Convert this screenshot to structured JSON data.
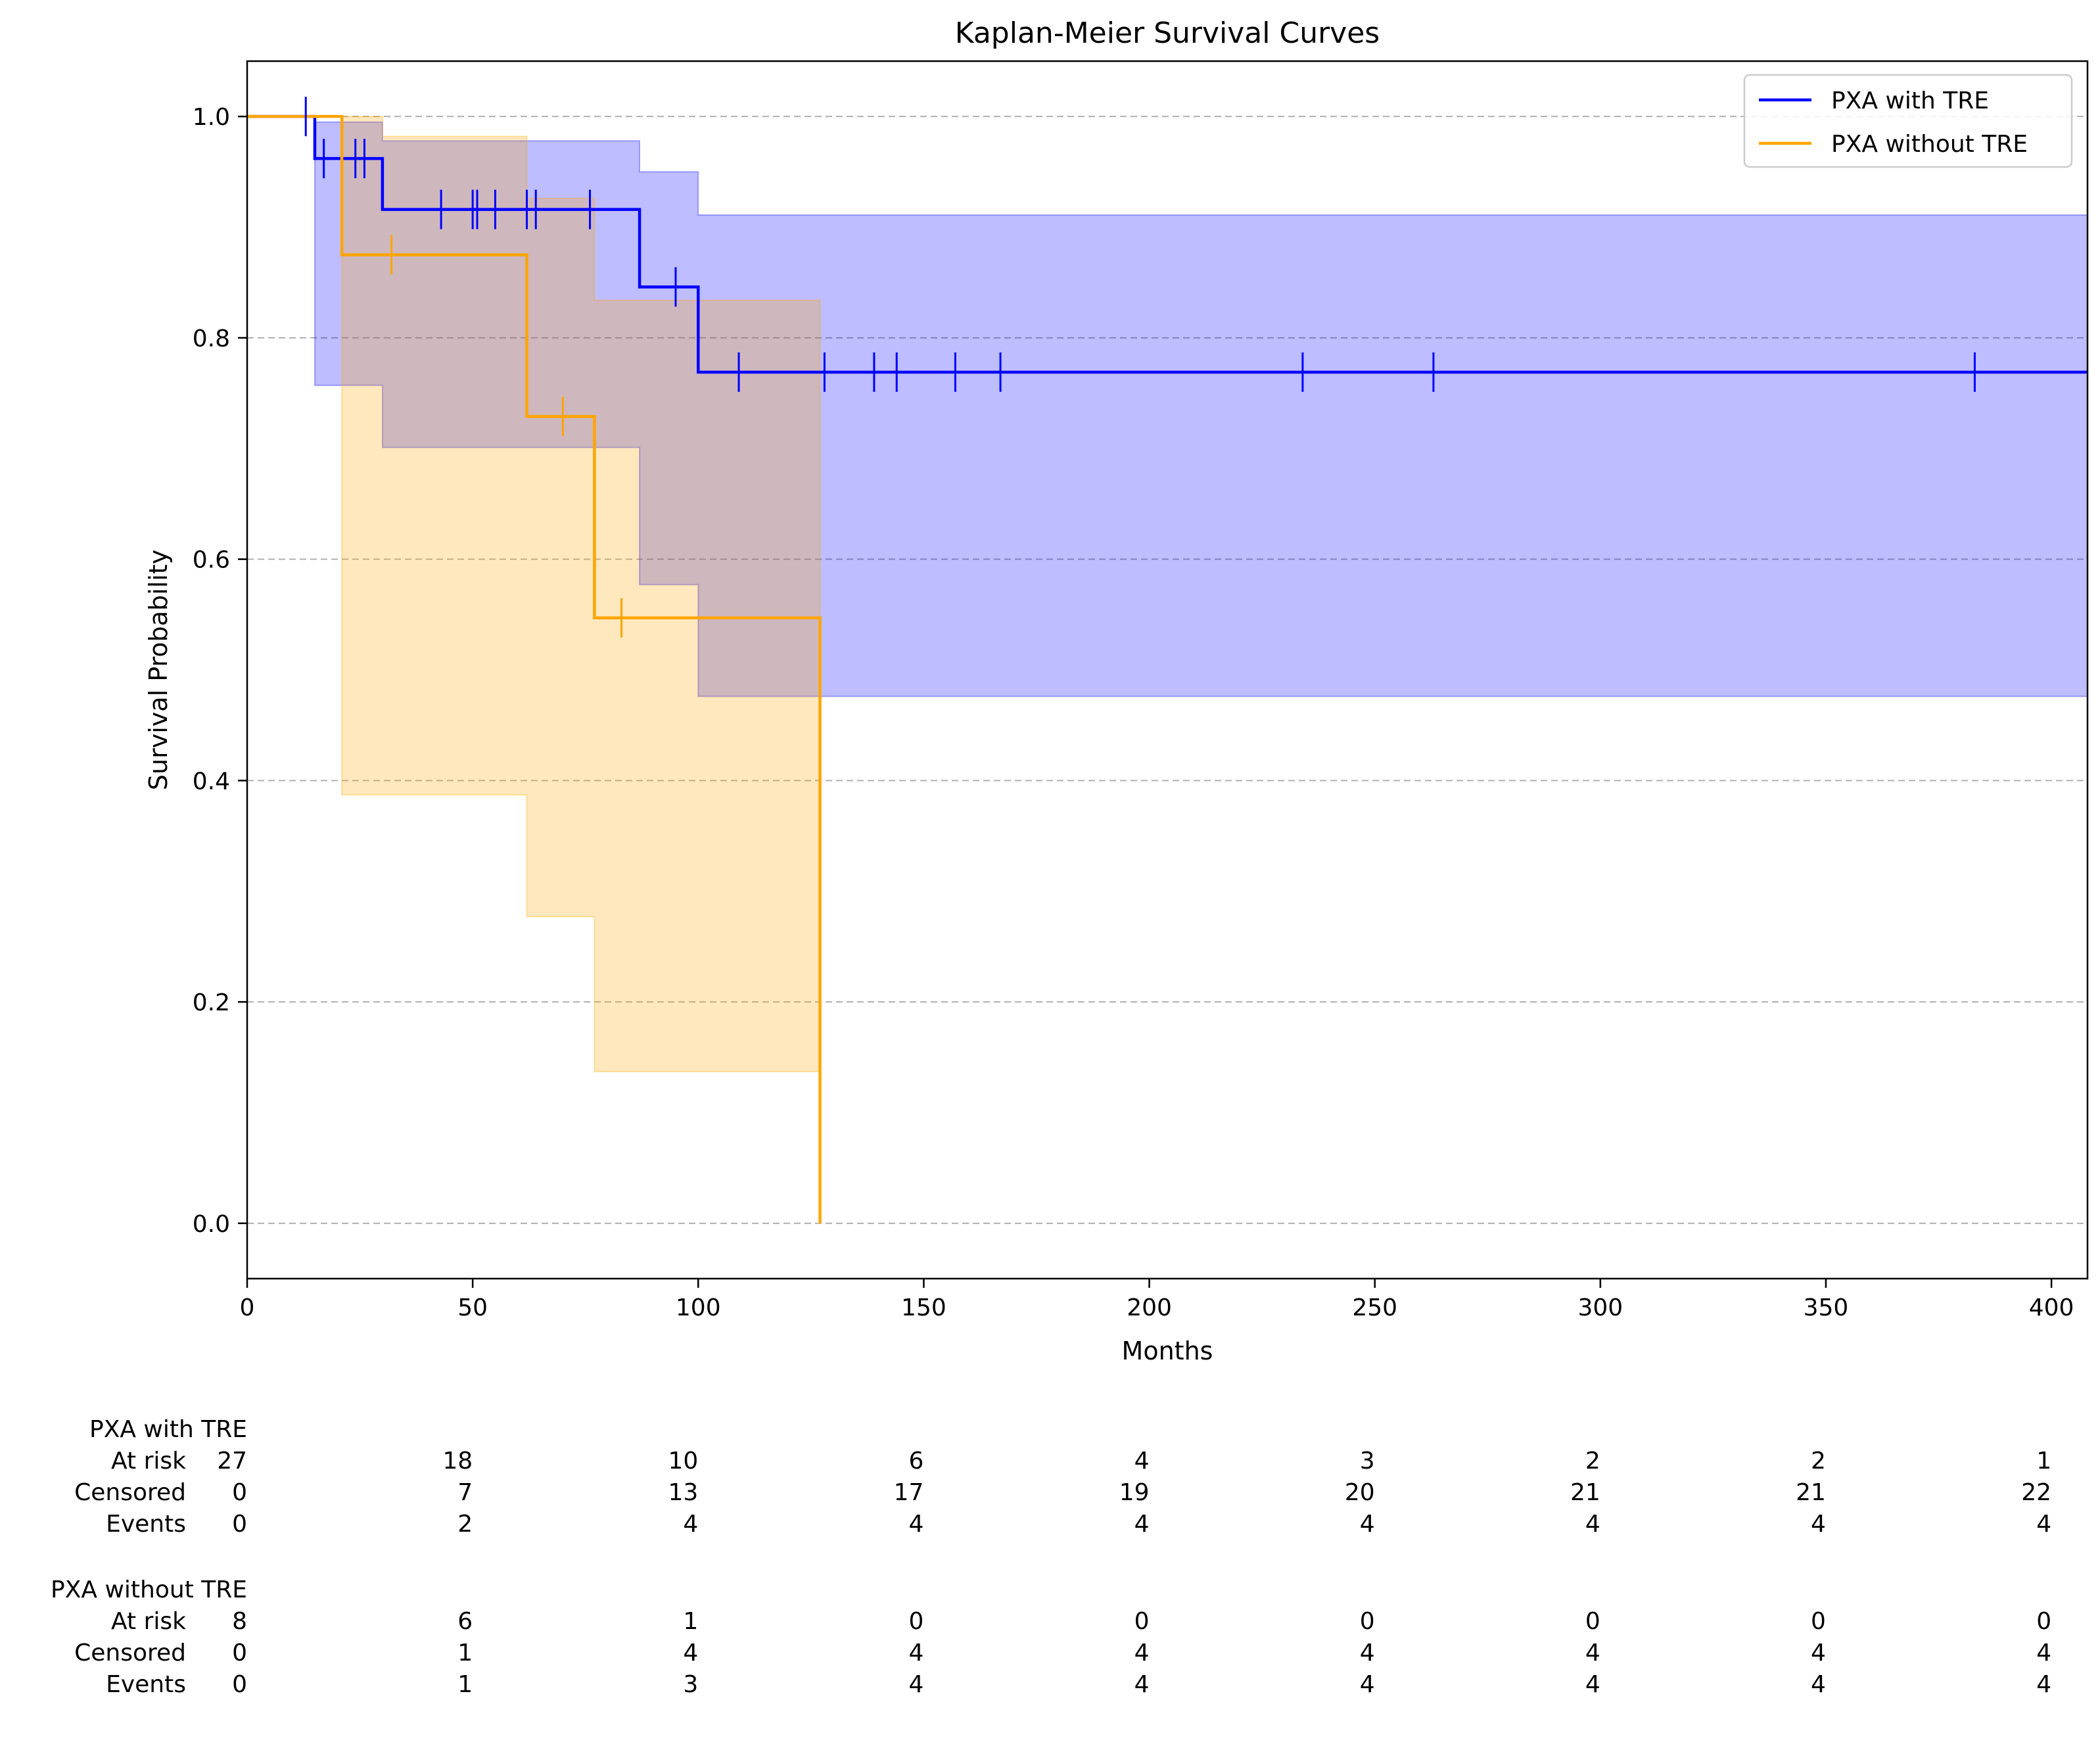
{
  "chart_data": {
    "type": "line",
    "subtype": "kaplan-meier step curve with confidence bands",
    "title": "Kaplan-Meier Survival Curves",
    "xlabel": "Months",
    "ylabel": "Survival Probability",
    "xlim": [
      0,
      408
    ],
    "ylim": [
      -0.05,
      1.05
    ],
    "xticks": [
      0,
      50,
      100,
      150,
      200,
      250,
      300,
      350,
      400
    ],
    "yticks": [
      0.0,
      0.2,
      0.4,
      0.6,
      0.8,
      1.0
    ],
    "grid": "y dashed",
    "legend_position": "top-right",
    "series": [
      {
        "name": "PXA with TRE",
        "color": "#0000ff",
        "band_color": "#bcbcfc",
        "curve": [
          [
            0,
            1.0
          ],
          [
            15,
            1.0
          ],
          [
            15,
            0.962
          ],
          [
            30,
            0.962
          ],
          [
            30,
            0.916
          ],
          [
            87,
            0.916
          ],
          [
            87,
            0.846
          ],
          [
            100,
            0.846
          ],
          [
            100,
            0.769
          ],
          [
            408,
            0.769
          ]
        ],
        "ci_lower": [
          [
            15,
            0.757
          ],
          [
            30,
            0.757
          ],
          [
            30,
            0.701
          ],
          [
            87,
            0.701
          ],
          [
            87,
            0.577
          ],
          [
            100,
            0.577
          ],
          [
            100,
            0.476
          ],
          [
            408,
            0.476
          ]
        ],
        "ci_upper": [
          [
            15,
            0.995
          ],
          [
            30,
            0.995
          ],
          [
            30,
            0.978
          ],
          [
            87,
            0.978
          ],
          [
            87,
            0.95
          ],
          [
            100,
            0.95
          ],
          [
            100,
            0.911
          ],
          [
            408,
            0.911
          ]
        ],
        "censor_marks": [
          [
            13,
            1.0
          ],
          [
            17,
            0.962
          ],
          [
            24,
            0.962
          ],
          [
            26,
            0.962
          ],
          [
            43,
            0.916
          ],
          [
            50,
            0.916
          ],
          [
            51,
            0.916
          ],
          [
            55,
            0.916
          ],
          [
            62,
            0.916
          ],
          [
            64,
            0.916
          ],
          [
            76,
            0.916
          ],
          [
            95,
            0.846
          ],
          [
            109,
            0.769
          ],
          [
            128,
            0.769
          ],
          [
            139,
            0.769
          ],
          [
            144,
            0.769
          ],
          [
            157,
            0.769
          ],
          [
            167,
            0.769
          ],
          [
            234,
            0.769
          ],
          [
            263,
            0.769
          ],
          [
            383,
            0.769
          ]
        ]
      },
      {
        "name": "PXA without TRE",
        "color": "#ffa500",
        "band_color": "#ffe6bc",
        "curve": [
          [
            0,
            1.0
          ],
          [
            21,
            1.0
          ],
          [
            21,
            0.875
          ],
          [
            62,
            0.875
          ],
          [
            62,
            0.729
          ],
          [
            77,
            0.729
          ],
          [
            77,
            0.547
          ],
          [
            127,
            0.547
          ],
          [
            127,
            0.0
          ]
        ],
        "ci_lower": [
          [
            21,
            0.387
          ],
          [
            62,
            0.387
          ],
          [
            62,
            0.277
          ],
          [
            77,
            0.277
          ],
          [
            77,
            0.137
          ],
          [
            127,
            0.137
          ]
        ],
        "ci_upper": [
          [
            21,
            1.0
          ],
          [
            30,
            1.0
          ],
          [
            30,
            0.982
          ],
          [
            62,
            0.982
          ],
          [
            62,
            0.926
          ],
          [
            77,
            0.926
          ],
          [
            77,
            0.834
          ],
          [
            127,
            0.834
          ]
        ],
        "censor_marks": [
          [
            32,
            0.875
          ],
          [
            70,
            0.729
          ],
          [
            83,
            0.547
          ]
        ]
      }
    ],
    "risk_table": {
      "row_labels": [
        "At risk",
        "Censored",
        "Events"
      ],
      "time_points": [
        0,
        50,
        100,
        150,
        200,
        250,
        300,
        350,
        400
      ],
      "groups": [
        {
          "name": "PXA with TRE",
          "at_risk": [
            27,
            18,
            10,
            6,
            4,
            3,
            2,
            2,
            1
          ],
          "censored": [
            0,
            7,
            13,
            17,
            19,
            20,
            21,
            21,
            22
          ],
          "events": [
            0,
            2,
            4,
            4,
            4,
            4,
            4,
            4,
            4
          ]
        },
        {
          "name": "PXA without TRE",
          "at_risk": [
            8,
            6,
            1,
            0,
            0,
            0,
            0,
            0,
            0
          ],
          "censored": [
            0,
            1,
            4,
            4,
            4,
            4,
            4,
            4,
            4
          ],
          "events": [
            0,
            1,
            3,
            4,
            4,
            4,
            4,
            4,
            4
          ]
        }
      ]
    }
  }
}
